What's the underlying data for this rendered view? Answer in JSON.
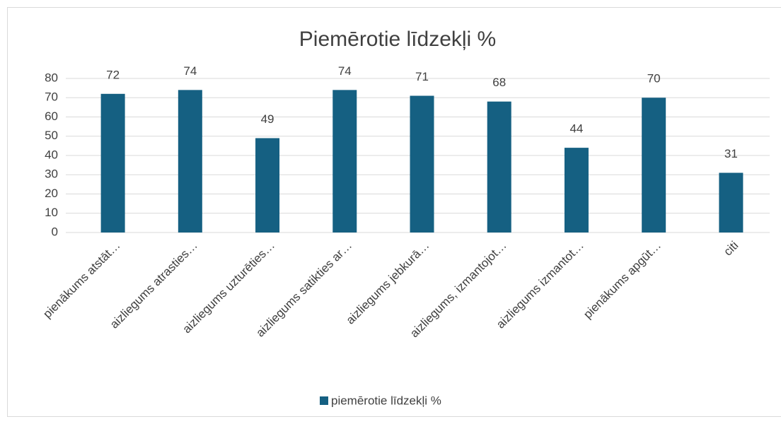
{
  "chart_data": {
    "type": "bar",
    "title": "Piemērotie līdzekļi %",
    "categories": [
      "pienākums atstāt…",
      "aizliegums atrasties…",
      "aizliegums  uzturēties…",
      "aizliegums satikties ar…",
      "aizliegums jebkurā…",
      "aizliegums, izmantojot…",
      "aizliegums izmantot…",
      "pienākums apgūt…",
      "citi"
    ],
    "series": [
      {
        "name": "piemērotie līdzekļi %",
        "color": "#156082",
        "values": [
          72,
          74,
          49,
          74,
          71,
          68,
          44,
          70,
          31
        ]
      }
    ],
    "ylim": [
      0,
      80
    ],
    "yticks": [
      0,
      10,
      20,
      30,
      40,
      50,
      60,
      70,
      80
    ],
    "grid": true,
    "legend": "bottom"
  }
}
